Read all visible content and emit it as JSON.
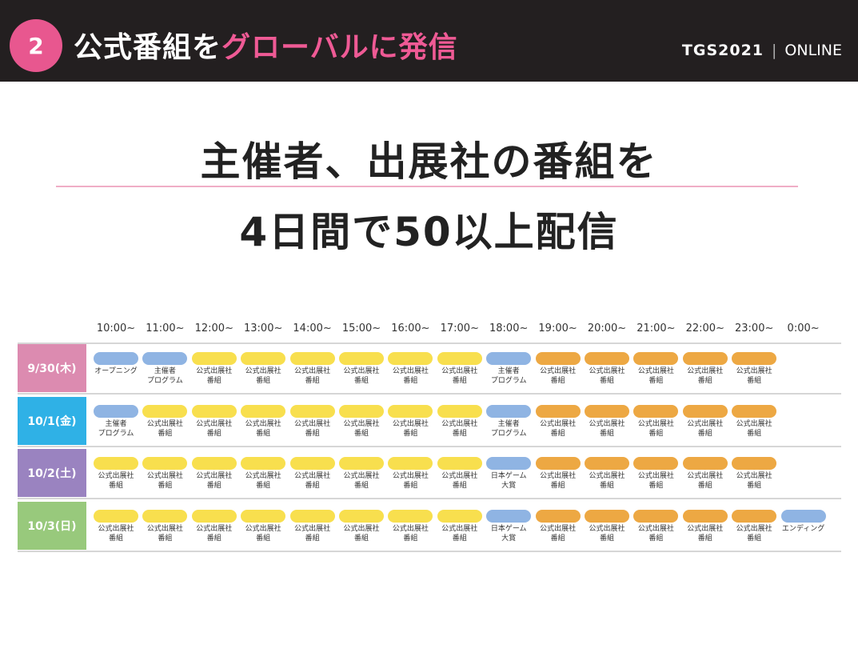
{
  "header": {
    "badge": "2",
    "title_a": "公式番組を",
    "title_b": "グローバルに発信",
    "logo_tgs": "TGS2021",
    "logo_sep": "|",
    "logo_online": "ONLINE"
  },
  "headline": {
    "line1": "主催者、出展社の番組を",
    "line2": "4日間で50以上配信"
  },
  "colors": {
    "header_bg": "#231f20",
    "accent_pink": "#e8578f",
    "blue": "#8fb4e3",
    "yellow": "#f8df4e",
    "orange": "#eda843",
    "day1": "#dc8bb0",
    "day2": "#2fb1e6",
    "day3": "#9a83c0",
    "day4": "#98c97c"
  },
  "schedule": {
    "times": [
      "10:00~",
      "11:00~",
      "12:00~",
      "13:00~",
      "14:00~",
      "15:00~",
      "16:00~",
      "17:00~",
      "18:00~",
      "19:00~",
      "20:00~",
      "21:00~",
      "22:00~",
      "23:00~",
      "0:00~"
    ],
    "days": [
      {
        "label": "9/30(木)",
        "color": "#dc8bb0",
        "cells": [
          {
            "c": "blue",
            "t": "オープニング"
          },
          {
            "c": "blue",
            "t": "主催者\nプログラム"
          },
          {
            "c": "yellow",
            "t": "公式出展社\n番組"
          },
          {
            "c": "yellow",
            "t": "公式出展社\n番組"
          },
          {
            "c": "yellow",
            "t": "公式出展社\n番組"
          },
          {
            "c": "yellow",
            "t": "公式出展社\n番組"
          },
          {
            "c": "yellow",
            "t": "公式出展社\n番組"
          },
          {
            "c": "yellow",
            "t": "公式出展社\n番組"
          },
          {
            "c": "blue",
            "t": "主催者\nプログラム"
          },
          {
            "c": "orange",
            "t": "公式出展社\n番組"
          },
          {
            "c": "orange",
            "t": "公式出展社\n番組"
          },
          {
            "c": "orange",
            "t": "公式出展社\n番組"
          },
          {
            "c": "orange",
            "t": "公式出展社\n番組"
          },
          {
            "c": "orange",
            "t": "公式出展社\n番組"
          }
        ]
      },
      {
        "label": "10/1(金)",
        "color": "#2fb1e6",
        "cells": [
          {
            "c": "blue",
            "t": "主催者\nプログラム"
          },
          {
            "c": "yellow",
            "t": "公式出展社\n番組"
          },
          {
            "c": "yellow",
            "t": "公式出展社\n番組"
          },
          {
            "c": "yellow",
            "t": "公式出展社\n番組"
          },
          {
            "c": "yellow",
            "t": "公式出展社\n番組"
          },
          {
            "c": "yellow",
            "t": "公式出展社\n番組"
          },
          {
            "c": "yellow",
            "t": "公式出展社\n番組"
          },
          {
            "c": "yellow",
            "t": "公式出展社\n番組"
          },
          {
            "c": "blue",
            "t": "主催者\nプログラム"
          },
          {
            "c": "orange",
            "t": "公式出展社\n番組"
          },
          {
            "c": "orange",
            "t": "公式出展社\n番組"
          },
          {
            "c": "orange",
            "t": "公式出展社\n番組"
          },
          {
            "c": "orange",
            "t": "公式出展社\n番組"
          },
          {
            "c": "orange",
            "t": "公式出展社\n番組"
          }
        ]
      },
      {
        "label": "10/2(土)",
        "color": "#9a83c0",
        "cells": [
          {
            "c": "yellow",
            "t": "公式出展社\n番組"
          },
          {
            "c": "yellow",
            "t": "公式出展社\n番組"
          },
          {
            "c": "yellow",
            "t": "公式出展社\n番組"
          },
          {
            "c": "yellow",
            "t": "公式出展社\n番組"
          },
          {
            "c": "yellow",
            "t": "公式出展社\n番組"
          },
          {
            "c": "yellow",
            "t": "公式出展社\n番組"
          },
          {
            "c": "yellow",
            "t": "公式出展社\n番組"
          },
          {
            "c": "yellow",
            "t": "公式出展社\n番組"
          },
          {
            "c": "blue",
            "t": "日本ゲーム\n大賞"
          },
          {
            "c": "orange",
            "t": "公式出展社\n番組"
          },
          {
            "c": "orange",
            "t": "公式出展社\n番組"
          },
          {
            "c": "orange",
            "t": "公式出展社\n番組"
          },
          {
            "c": "orange",
            "t": "公式出展社\n番組"
          },
          {
            "c": "orange",
            "t": "公式出展社\n番組"
          }
        ]
      },
      {
        "label": "10/3(日)",
        "color": "#98c97c",
        "cells": [
          {
            "c": "yellow",
            "t": "公式出展社\n番組"
          },
          {
            "c": "yellow",
            "t": "公式出展社\n番組"
          },
          {
            "c": "yellow",
            "t": "公式出展社\n番組"
          },
          {
            "c": "yellow",
            "t": "公式出展社\n番組"
          },
          {
            "c": "yellow",
            "t": "公式出展社\n番組"
          },
          {
            "c": "yellow",
            "t": "公式出展社\n番組"
          },
          {
            "c": "yellow",
            "t": "公式出展社\n番組"
          },
          {
            "c": "yellow",
            "t": "公式出展社\n番組"
          },
          {
            "c": "blue",
            "t": "日本ゲーム\n大賞"
          },
          {
            "c": "orange",
            "t": "公式出展社\n番組"
          },
          {
            "c": "orange",
            "t": "公式出展社\n番組"
          },
          {
            "c": "orange",
            "t": "公式出展社\n番組"
          },
          {
            "c": "orange",
            "t": "公式出展社\n番組"
          },
          {
            "c": "orange",
            "t": "公式出展社\n番組"
          },
          {
            "c": "blue",
            "t": "エンディング"
          }
        ]
      }
    ]
  }
}
